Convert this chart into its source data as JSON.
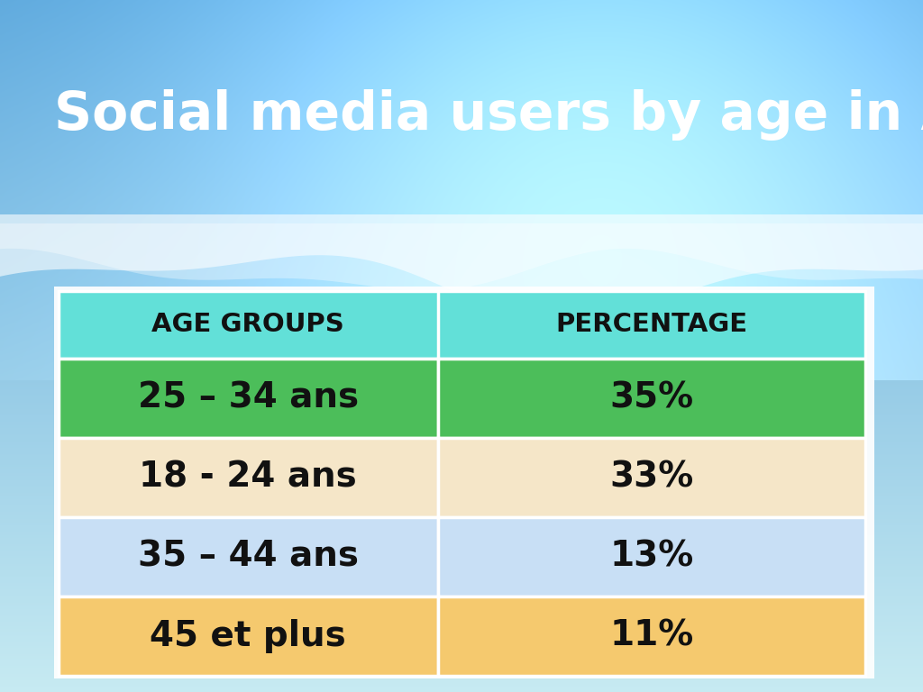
{
  "title": "Social media users by age in Africa",
  "title_color": "#ffffff",
  "title_fontsize": 42,
  "header_bg": "#62e0d8",
  "header_text_color": "#111111",
  "header_col1": "AGE GROUPS",
  "header_col2": "PERCENTAGE",
  "header_fontsize": 21,
  "rows": [
    {
      "age": "25 – 34 ans",
      "pct": "35%",
      "bg": "#4cbe5a"
    },
    {
      "age": "18 - 24 ans",
      "pct": "33%",
      "bg": "#f5e6c8"
    },
    {
      "age": "35 – 44 ans",
      "pct": "13%",
      "bg": "#c8dff5"
    },
    {
      "age": "45 et plus",
      "pct": "11%",
      "bg": "#f5c96e"
    }
  ],
  "row_text_color": "#111111",
  "row_fontsize": 28,
  "bg_sky_light": "#a8d8f0",
  "bg_sky_mid": "#5bbde0",
  "bg_sky_dark": "#3a9fd0",
  "bg_white": "#f0f8ff"
}
